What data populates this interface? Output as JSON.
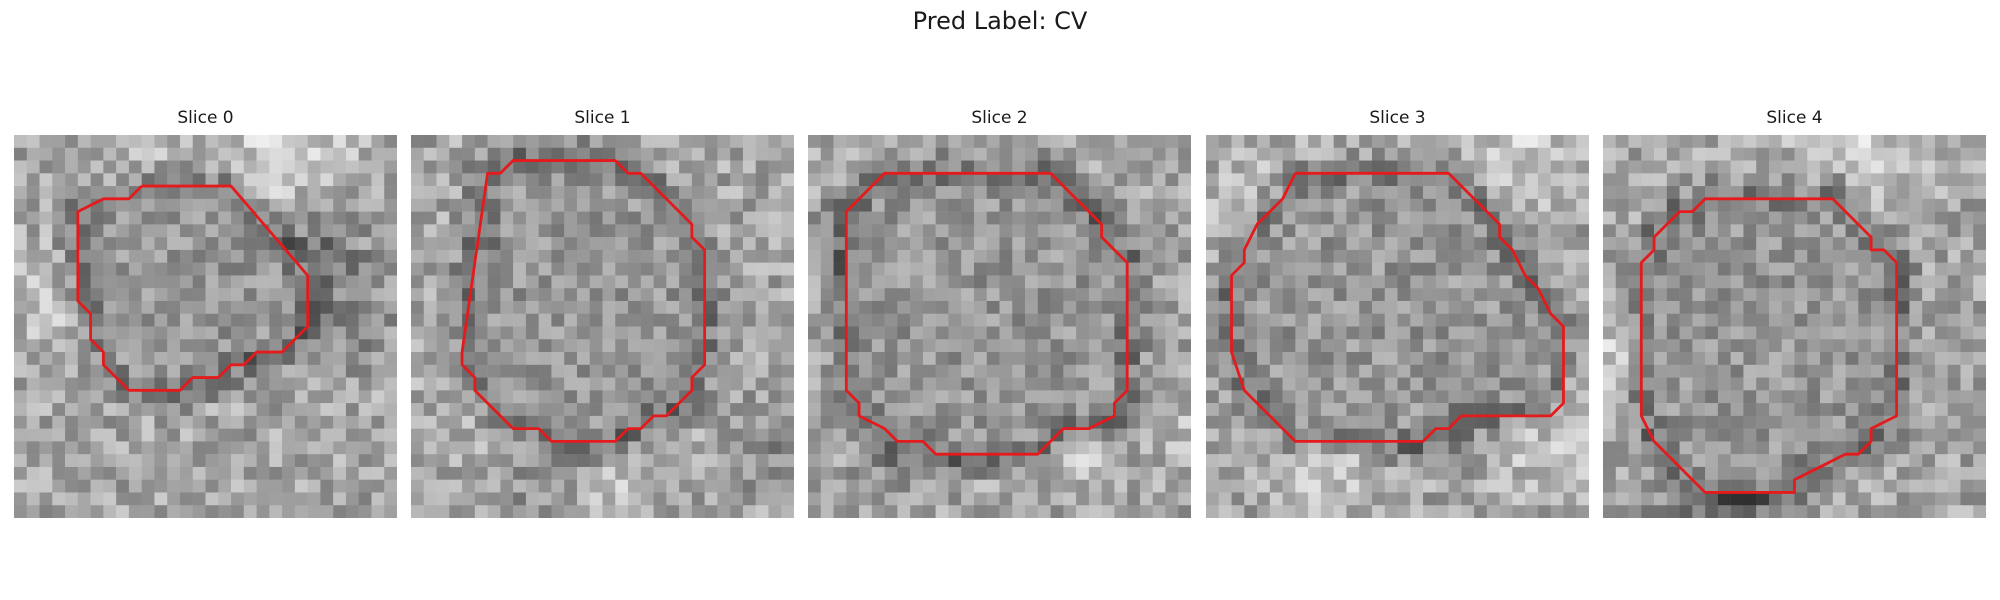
{
  "figure": {
    "title": "Pred Label: CV",
    "outline_color": "#e41a1c",
    "colormap": "gray"
  },
  "panels": [
    {
      "title": "Slice 0",
      "contour": [
        [
          10,
          4
        ],
        [
          17,
          4
        ],
        [
          23,
          11
        ],
        [
          23,
          15
        ],
        [
          21,
          17
        ],
        [
          19,
          17
        ],
        [
          18,
          18
        ],
        [
          17,
          18
        ],
        [
          16,
          19
        ],
        [
          14,
          19
        ],
        [
          13,
          20
        ],
        [
          9,
          20
        ],
        [
          8,
          19
        ],
        [
          7,
          18
        ],
        [
          7,
          17
        ],
        [
          6,
          16
        ],
        [
          6,
          14
        ],
        [
          5,
          13
        ],
        [
          5,
          6
        ],
        [
          7,
          5
        ],
        [
          9,
          5
        ],
        [
          10,
          4
        ]
      ]
    },
    {
      "title": "Slice 1",
      "contour": [
        [
          11,
          2
        ],
        [
          16,
          2
        ],
        [
          17,
          3
        ],
        [
          18,
          3
        ],
        [
          22,
          7
        ],
        [
          22,
          8
        ],
        [
          23,
          9
        ],
        [
          23,
          18
        ],
        [
          22,
          19
        ],
        [
          22,
          20
        ],
        [
          20,
          22
        ],
        [
          19,
          22
        ],
        [
          18,
          23
        ],
        [
          17,
          23
        ],
        [
          16,
          24
        ],
        [
          11,
          24
        ],
        [
          10,
          23
        ],
        [
          8,
          23
        ],
        [
          6,
          21
        ],
        [
          5,
          20
        ],
        [
          5,
          19
        ],
        [
          4,
          18
        ],
        [
          4,
          17
        ],
        [
          6,
          3
        ],
        [
          7,
          3
        ],
        [
          8,
          2
        ],
        [
          10,
          2
        ],
        [
          11,
          2
        ]
      ]
    },
    {
      "title": "Slice 2",
      "contour": [
        [
          7,
          3
        ],
        [
          19,
          3
        ],
        [
          23,
          7
        ],
        [
          23,
          8
        ],
        [
          24,
          9
        ],
        [
          25,
          10
        ],
        [
          25,
          20
        ],
        [
          24,
          21
        ],
        [
          24,
          22
        ],
        [
          22,
          23
        ],
        [
          20,
          23
        ],
        [
          18,
          25
        ],
        [
          10,
          25
        ],
        [
          9,
          24
        ],
        [
          7,
          24
        ],
        [
          6,
          23
        ],
        [
          4,
          22
        ],
        [
          4,
          21
        ],
        [
          3,
          20
        ],
        [
          3,
          6
        ],
        [
          6,
          3
        ],
        [
          7,
          3
        ]
      ]
    },
    {
      "title": "Slice 3",
      "contour": [
        [
          7,
          3
        ],
        [
          19,
          3
        ],
        [
          23,
          7
        ],
        [
          23,
          8
        ],
        [
          24,
          9
        ],
        [
          25,
          11
        ],
        [
          26,
          12
        ],
        [
          27,
          14
        ],
        [
          28,
          15
        ],
        [
          28,
          21
        ],
        [
          27,
          22
        ],
        [
          20,
          22
        ],
        [
          19,
          23
        ],
        [
          18,
          23
        ],
        [
          17,
          24
        ],
        [
          7,
          24
        ],
        [
          5,
          22
        ],
        [
          4,
          21
        ],
        [
          3,
          20
        ],
        [
          2,
          17
        ],
        [
          2,
          11
        ],
        [
          3,
          10
        ],
        [
          3,
          9
        ],
        [
          4,
          7
        ],
        [
          5,
          6
        ],
        [
          6,
          5
        ],
        [
          7,
          3
        ]
      ]
    },
    {
      "title": "Slice 4",
      "contour": [
        [
          10,
          5
        ],
        [
          18,
          5
        ],
        [
          20,
          7
        ],
        [
          21,
          8
        ],
        [
          21,
          9
        ],
        [
          22,
          9
        ],
        [
          23,
          10
        ],
        [
          23,
          22
        ],
        [
          21,
          23
        ],
        [
          21,
          24
        ],
        [
          20,
          25
        ],
        [
          19,
          25
        ],
        [
          17,
          26
        ],
        [
          15,
          27
        ],
        [
          15,
          28
        ],
        [
          8,
          28
        ],
        [
          4,
          24
        ],
        [
          3,
          22
        ],
        [
          3,
          21
        ],
        [
          3,
          10
        ],
        [
          4,
          9
        ],
        [
          4,
          8
        ],
        [
          5,
          7
        ],
        [
          6,
          6
        ],
        [
          7,
          6
        ],
        [
          8,
          5
        ],
        [
          10,
          5
        ]
      ]
    }
  ]
}
